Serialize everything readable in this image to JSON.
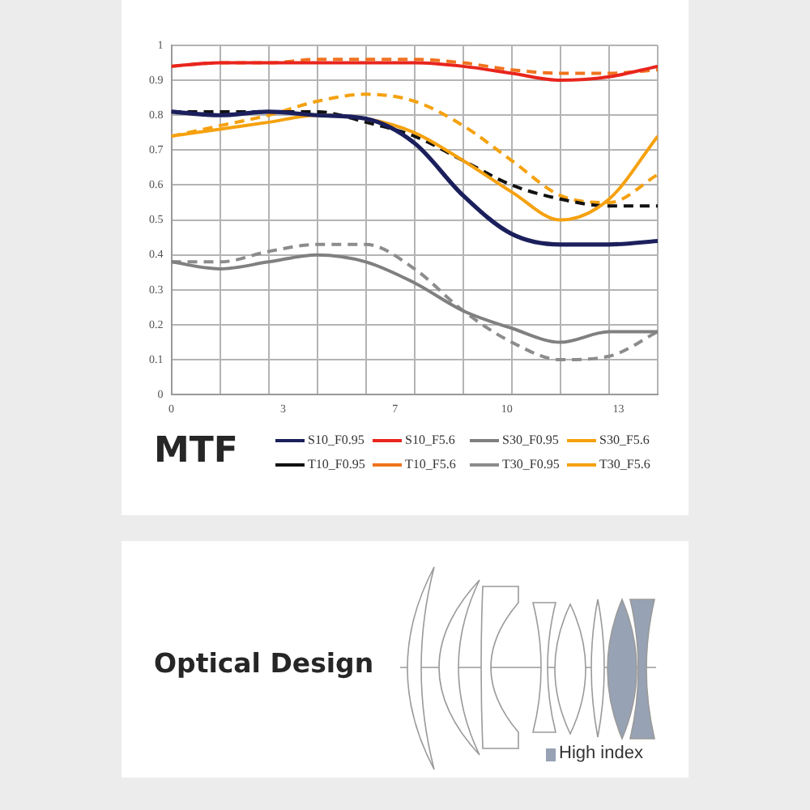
{
  "chart_data": [
    {
      "type": "line",
      "title": "MTF",
      "x": [
        0,
        1.45,
        2.9,
        4.35,
        5.8,
        7.25,
        8.7,
        10.15,
        11.6,
        13.05,
        14.5
      ],
      "xlim": [
        0,
        14.5
      ],
      "xticks": [
        0,
        {
          "value": 1.45,
          "label": null
        },
        {
          "value": 2.9,
          "label": null
        },
        {
          "value": 3.33,
          "label": "3"
        },
        {
          "value": 4.35,
          "label": null
        },
        {
          "value": 5.8,
          "label": null
        },
        {
          "value": 6.67,
          "label": "7"
        },
        {
          "value": 7.25,
          "label": null
        },
        {
          "value": 8.7,
          "label": null
        },
        10,
        {
          "value": 10.15,
          "label": null
        },
        {
          "value": 11.6,
          "label": null
        },
        {
          "value": 13.05,
          "label": null
        },
        {
          "value": 13.33,
          "label": "13"
        },
        {
          "value": 14.5,
          "label": null
        }
      ],
      "ylim": [
        0,
        1
      ],
      "yticks": [
        0,
        0.1,
        0.2,
        0.3,
        0.4,
        0.5,
        0.6,
        0.7,
        0.8,
        0.9,
        1
      ],
      "grid": true,
      "legend": "bottom",
      "series": [
        {
          "name": "S10_F0.95",
          "color": "#1b1f5c",
          "line_style": "solid",
          "values": [
            0.81,
            0.8,
            0.81,
            0.8,
            0.79,
            0.72,
            0.57,
            0.46,
            0.43,
            0.43,
            0.44
          ]
        },
        {
          "name": "S10_F5.6",
          "color": "#e8251d",
          "line_style": "solid",
          "values": [
            0.94,
            0.95,
            0.95,
            0.95,
            0.95,
            0.95,
            0.94,
            0.92,
            0.9,
            0.91,
            0.94
          ]
        },
        {
          "name": "S30_F0.95",
          "color": "#808080",
          "line_style": "solid",
          "values": [
            0.38,
            0.36,
            0.38,
            0.4,
            0.38,
            0.32,
            0.24,
            0.19,
            0.15,
            0.18,
            0.18
          ]
        },
        {
          "name": "S30_F5.6",
          "color": "#f5a10f",
          "line_style": "solid",
          "values": [
            0.74,
            0.76,
            0.78,
            0.8,
            0.79,
            0.75,
            0.67,
            0.58,
            0.5,
            0.56,
            0.74
          ]
        },
        {
          "name": "T10_F0.95",
          "color": "#111111",
          "line_style": "dashed",
          "values": [
            0.81,
            0.81,
            0.81,
            0.81,
            0.78,
            0.74,
            0.67,
            0.6,
            0.56,
            0.54,
            0.54
          ]
        },
        {
          "name": "T10_F5.6",
          "color": "#f0731e",
          "line_style": "dashed",
          "values": [
            0.94,
            0.95,
            0.95,
            0.96,
            0.96,
            0.96,
            0.95,
            0.93,
            0.92,
            0.92,
            0.93
          ]
        },
        {
          "name": "T30_F0.95",
          "color": "#8c8c8c",
          "line_style": "dashed",
          "values": [
            0.38,
            0.38,
            0.41,
            0.43,
            0.43,
            0.36,
            0.24,
            0.15,
            0.1,
            0.11,
            0.18
          ]
        },
        {
          "name": "T30_F5.6",
          "color": "#f5a10f",
          "line_style": "dashed",
          "values": [
            0.74,
            0.77,
            0.8,
            0.84,
            0.86,
            0.84,
            0.77,
            0.67,
            0.57,
            0.55,
            0.63
          ]
        }
      ]
    },
    {
      "type": "other",
      "title": "Optical Design",
      "annotations": [
        "High index"
      ]
    }
  ]
}
